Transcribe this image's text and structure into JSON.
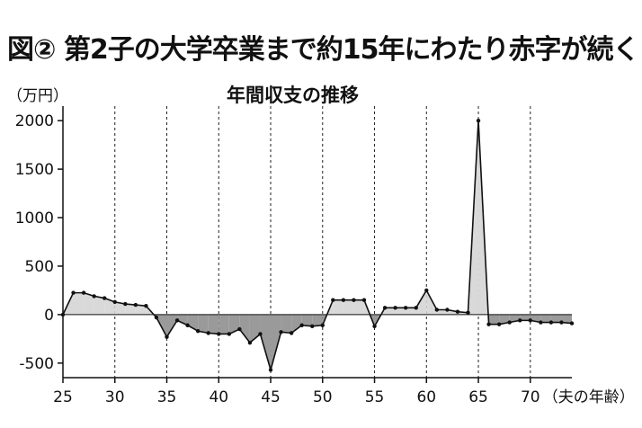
{
  "title": "図② 第2子の大学卒業まで約15年にわたり赤字が続く",
  "chart_data": {
    "type": "area",
    "title": "図② 第2子の大学卒業まで約15年にわたり赤字が続く",
    "subtitle": "年間収支の推移",
    "ylabel": "（万円）",
    "xlabel": "（夫の年齢）",
    "x": [
      25,
      26,
      27,
      28,
      29,
      30,
      31,
      32,
      33,
      34,
      35,
      36,
      37,
      38,
      39,
      40,
      41,
      42,
      43,
      44,
      45,
      46,
      47,
      48,
      49,
      50,
      51,
      52,
      53,
      54,
      55,
      56,
      57,
      58,
      59,
      60,
      61,
      62,
      63,
      64,
      65,
      66,
      67,
      68,
      69,
      70,
      71,
      72,
      73,
      74
    ],
    "series": [
      {
        "values": [
          0,
          225,
          225,
          190,
          170,
          130,
          110,
          100,
          90,
          -30,
          -230,
          -60,
          -110,
          -170,
          -190,
          -200,
          -200,
          -150,
          -290,
          -200,
          -570,
          -180,
          -190,
          -110,
          -120,
          -110,
          150,
          150,
          150,
          150,
          -120,
          70,
          70,
          70,
          70,
          250,
          50,
          50,
          30,
          20,
          2000,
          -100,
          -100,
          -80,
          -60,
          -60,
          -80,
          -80,
          -80,
          -90
        ]
      }
    ],
    "xlim": [
      25,
      74
    ],
    "ylim": [
      -650,
      2150
    ],
    "xticks": [
      25,
      30,
      35,
      40,
      45,
      50,
      55,
      60,
      65,
      70
    ],
    "xtick_labels": [
      "25",
      "30",
      "35",
      "40",
      "45",
      "50",
      "55",
      "60",
      "65",
      "70"
    ],
    "yticks": [
      -500,
      0,
      500,
      1000,
      1500,
      2000
    ],
    "ytick_labels": [
      "-500",
      "0",
      "500",
      "1000",
      "1500",
      "2000"
    ],
    "grid": "vertical dashed at each x tick",
    "colors": {
      "positive_fill": "#d9d9d9",
      "negative_fill": "#9a9a9a",
      "line": "#111111"
    }
  }
}
